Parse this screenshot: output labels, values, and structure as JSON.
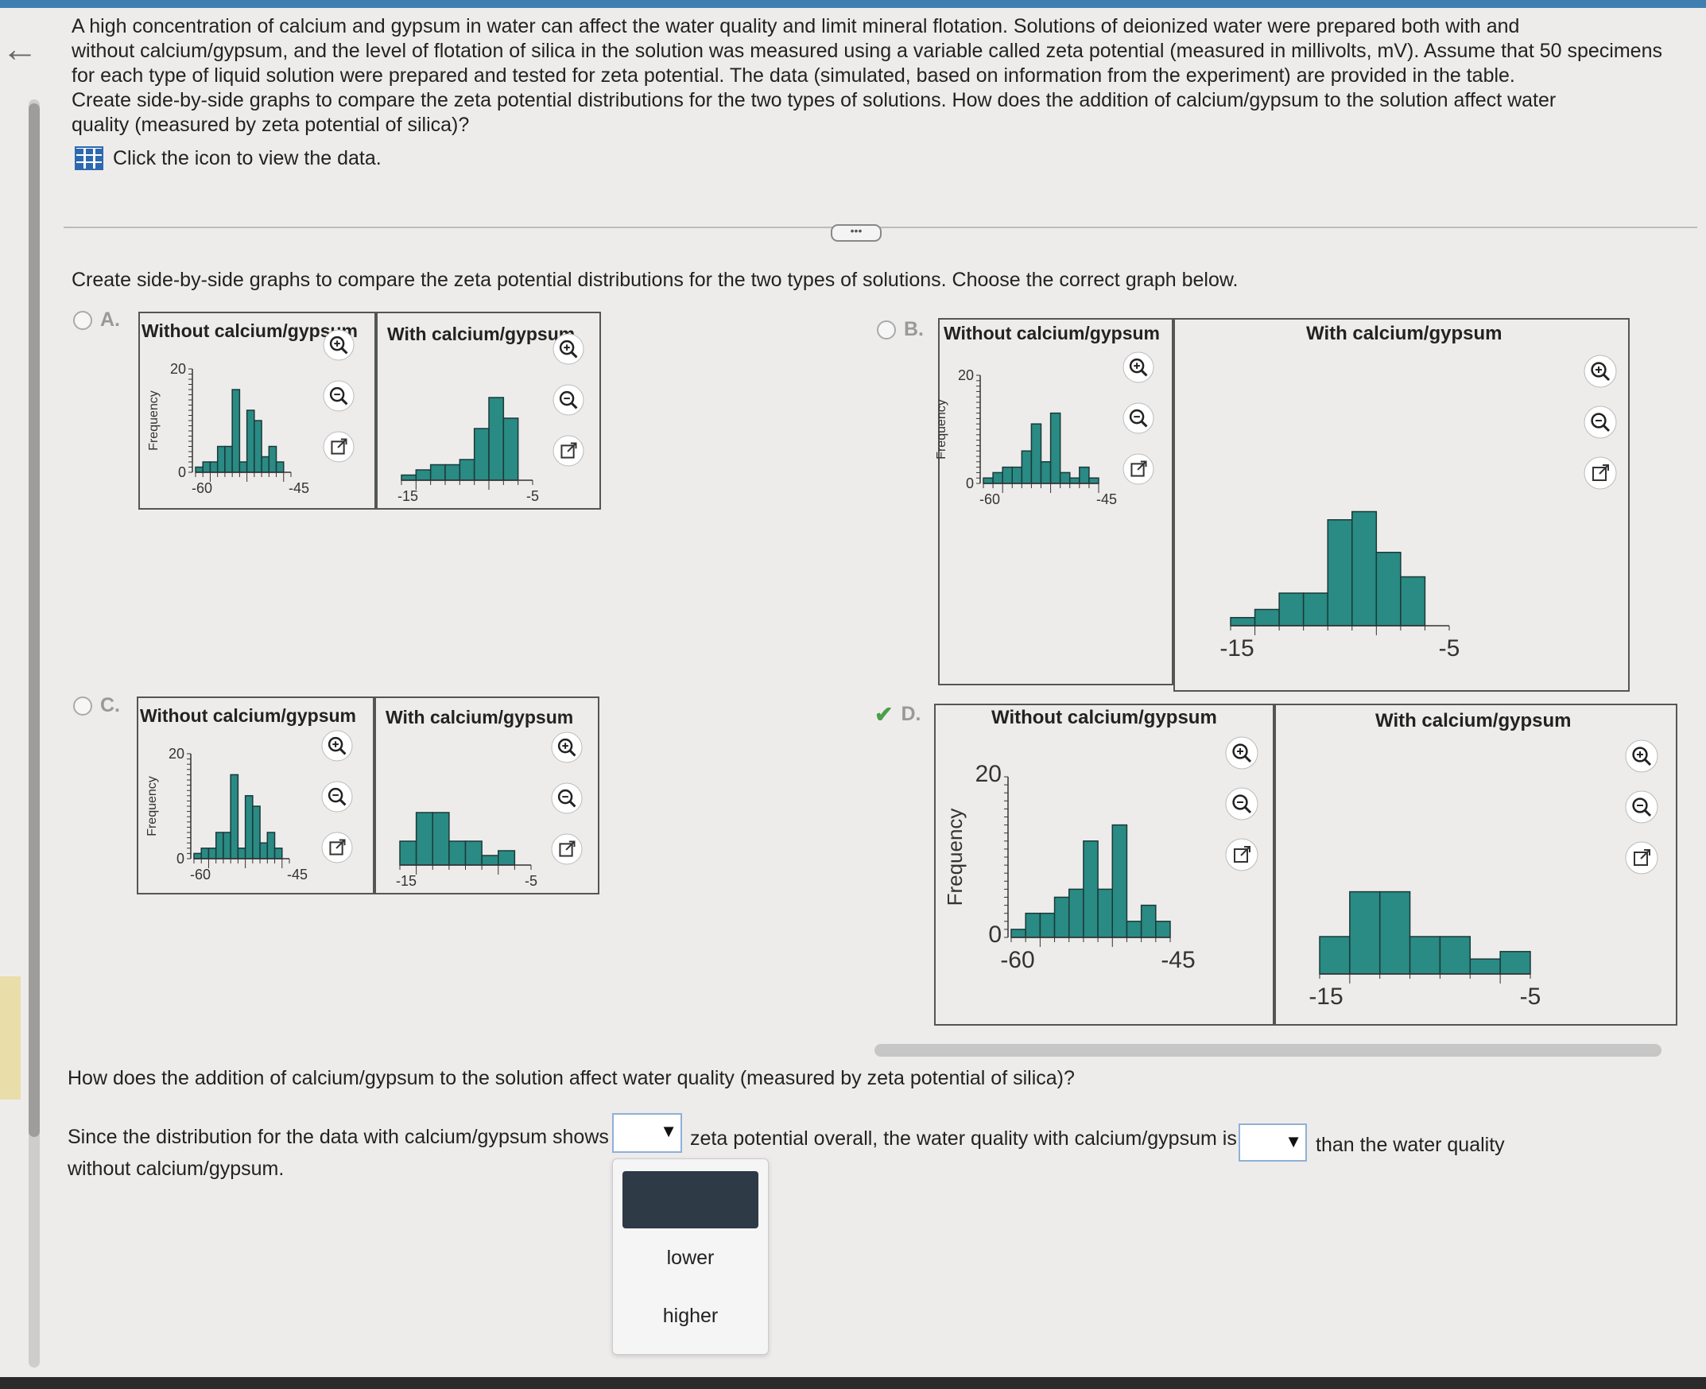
{
  "question": {
    "lines": [
      "A high concentration of calcium and gypsum in water can affect the water quality and limit mineral flotation. Solutions of deionized water were prepared both with and",
      "without calcium/gypsum, and the level of flotation of silica in the solution was measured using a variable called zeta potential (measured in millivolts, mV). Assume that 50 specimens",
      "for each type of liquid solution were prepared and tested for zeta potential. The data (simulated, based on information from the experiment) are provided in the table.",
      "Create side-by-side graphs to compare the zeta potential distributions for the two types of solutions. How does the addition of calcium/gypsum to the solution affect water",
      "quality (measured by zeta potential of silica)?"
    ],
    "data_link_text": "Click the icon to view the data."
  },
  "prompt": "Create side-by-side graphs to compare the zeta potential distributions for the two types of solutions. Choose the correct graph below.",
  "options": [
    {
      "letter": "A.",
      "left_title": "Without calcium/gypsum",
      "right_title": "With calcium/gypsum",
      "y_label": "Frequency",
      "y_top": "20",
      "y_bottom": "0",
      "left_ticks": [
        "-60",
        "-45"
      ],
      "right_ticks": [
        "-15",
        "-5"
      ]
    },
    {
      "letter": "B.",
      "left_title": "Without calcium/gypsum",
      "right_title": "With calcium/gypsum",
      "y_label": "Frequency",
      "y_top": "20",
      "y_bottom": "0",
      "left_ticks": [
        "-60",
        "-45"
      ],
      "right_ticks": [
        "-15",
        "-5"
      ]
    },
    {
      "letter": "C.",
      "left_title": "Without calcium/gypsum",
      "right_title": "With calcium/gypsum",
      "y_label": "Frequency",
      "y_top": "20",
      "y_bottom": "0",
      "left_ticks": [
        "-60",
        "-45"
      ],
      "right_ticks": [
        "-15",
        "-5"
      ]
    },
    {
      "letter": "D.",
      "left_title": "Without calcium/gypsum",
      "right_title": "With calcium/gypsum",
      "y_label": "Frequency",
      "y_top": "20",
      "y_bottom": "0",
      "left_ticks": [
        "-60",
        "-45"
      ],
      "right_ticks": [
        "-15",
        "-5"
      ],
      "correct": true
    }
  ],
  "chart_data": [
    {
      "type": "bar",
      "option": "A",
      "series": [
        {
          "name": "Without calcium/gypsum",
          "x": [
            -61.5,
            -60.5,
            -59.5,
            -58.5,
            -57.5,
            -56.5,
            -55.5,
            -54.5,
            -53.5,
            -52.5,
            -51.5,
            -50.5,
            -49.5
          ],
          "values": [
            1,
            2,
            2,
            5,
            5,
            16,
            2,
            12,
            10,
            3,
            5,
            2,
            0
          ]
        },
        {
          "name": "With calcium/gypsum",
          "x": [
            -15.5,
            -14.5,
            -13.5,
            -12.5,
            -11.5,
            -10.5,
            -9.5,
            -8.5,
            -7.5
          ],
          "values": [
            1,
            2,
            3,
            3,
            4,
            10,
            16,
            12,
            0
          ]
        }
      ]
    },
    {
      "type": "bar",
      "option": "B",
      "series": [
        {
          "name": "Without calcium/gypsum",
          "x": [
            -61.5,
            -60.5,
            -59.5,
            -58.5,
            -57.5,
            -56.5,
            -55.5,
            -54.5,
            -53.5,
            -52.5,
            -51.5,
            -50.5
          ],
          "values": [
            1,
            2,
            3,
            3,
            6,
            11,
            4,
            13,
            2,
            1,
            3,
            1
          ]
        },
        {
          "name": "With calcium/gypsum",
          "x": [
            -15.5,
            -14.5,
            -13.5,
            -12.5,
            -11.5,
            -10.5,
            -9.5,
            -8.5,
            -7.5
          ],
          "values": [
            1,
            2,
            4,
            4,
            13,
            14,
            9,
            6,
            0
          ]
        }
      ]
    },
    {
      "type": "bar",
      "option": "C",
      "series": [
        {
          "name": "Without calcium/gypsum",
          "x": [
            -61.5,
            -60.5,
            -59.5,
            -58.5,
            -57.5,
            -56.5,
            -55.5,
            -54.5,
            -53.5,
            -52.5,
            -51.5,
            -50.5,
            -49.5
          ],
          "values": [
            1,
            2,
            2,
            5,
            5,
            16,
            2,
            12,
            10,
            3,
            5,
            2,
            0
          ]
        },
        {
          "name": "With calcium/gypsum",
          "x": [
            -15.5,
            -14.5,
            -13.5,
            -12.5,
            -11.5,
            -10.5,
            -9.5
          ],
          "values": [
            5,
            11,
            11,
            5,
            5,
            2,
            3
          ]
        }
      ]
    },
    {
      "type": "bar",
      "option": "D",
      "series": [
        {
          "name": "Without calcium/gypsum",
          "x": [
            -61.5,
            -60.5,
            -59.5,
            -58.5,
            -57.5,
            -56.5,
            -55.5,
            -54.5,
            -53.5,
            -52.5,
            -51.5
          ],
          "values": [
            1,
            3,
            3,
            5,
            6,
            12,
            6,
            14,
            2,
            4,
            2
          ]
        },
        {
          "name": "With calcium/gypsum",
          "x": [
            -15.5,
            -14.5,
            -13.5,
            -12.5,
            -11.5,
            -10.5,
            -9.5
          ],
          "values": [
            5,
            11,
            11,
            5,
            5,
            2,
            3
          ]
        }
      ]
    }
  ],
  "answer": {
    "question": "How does the addition of calcium/gypsum to the solution affect water quality (measured by zeta potential of silica)?",
    "part1": "Since the distribution for the data with calcium/gypsum shows",
    "part2": "zeta potential overall, the water quality with calcium/gypsum is",
    "part3": "than the water quality",
    "part4": "without calcium/gypsum.",
    "dropdown_options": [
      "lower",
      "higher"
    ]
  },
  "colors": {
    "bar": "#2a8a84",
    "bar_edge": "#1a3a38",
    "accent": "#2d68b0",
    "correct": "#4aa04a"
  }
}
